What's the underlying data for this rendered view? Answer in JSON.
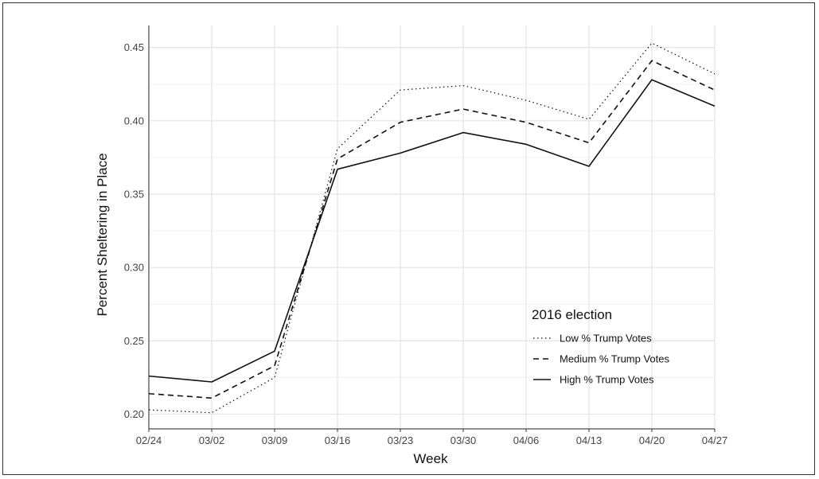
{
  "chart_data": {
    "type": "line",
    "title": "",
    "xlabel": "Week",
    "ylabel": "Percent Sheltering in Place",
    "categories": [
      "02/24",
      "03/02",
      "03/09",
      "03/16",
      "03/23",
      "03/30",
      "04/06",
      "04/13",
      "04/20",
      "04/27"
    ],
    "yticks": [
      "0.20",
      "0.25",
      "0.30",
      "0.35",
      "0.40",
      "0.45"
    ],
    "ylim": [
      0.19,
      0.465
    ],
    "grid": true,
    "legend": {
      "title": "2016 election",
      "position": "inside-right"
    },
    "series": [
      {
        "name": "Low % Trump Votes",
        "style": "dotted",
        "values": [
          0.203,
          0.201,
          0.225,
          0.381,
          0.421,
          0.424,
          0.414,
          0.401,
          0.453,
          0.432
        ]
      },
      {
        "name": "Medium % Trump Votes",
        "style": "dashed",
        "values": [
          0.214,
          0.211,
          0.233,
          0.374,
          0.399,
          0.408,
          0.399,
          0.385,
          0.441,
          0.421
        ]
      },
      {
        "name": "High % Trump Votes",
        "style": "solid",
        "values": [
          0.226,
          0.222,
          0.243,
          0.367,
          0.378,
          0.392,
          0.384,
          0.369,
          0.428,
          0.41
        ]
      }
    ]
  }
}
